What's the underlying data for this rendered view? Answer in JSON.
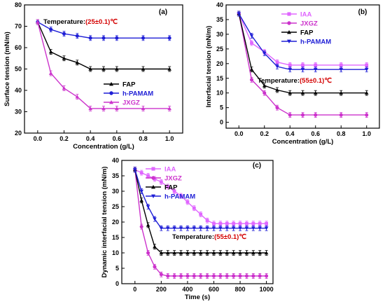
{
  "chart_data": [
    {
      "type": "line",
      "panel_label": "(a)",
      "annotation": {
        "prefix": "Temperature:",
        "value": "(25±0.1)℃"
      },
      "xlabel": "Concentration (g/L)",
      "ylabel": "Surface tension (mN/m)",
      "xlim": [
        -0.1,
        1.1
      ],
      "ylim": [
        20,
        80
      ],
      "xticks": [
        "0.0",
        "0.2",
        "0.4",
        "0.6",
        "0.8",
        "1.0"
      ],
      "yticks": [
        "20",
        "30",
        "40",
        "50",
        "60",
        "70",
        "80"
      ],
      "legend_position": "middle-right",
      "legend_order": [
        "FAP",
        "h-PAMAM",
        "JXGZ"
      ],
      "series": [
        {
          "name": "FAP",
          "color": "#000000",
          "marker": "triangle-up",
          "x": [
            0.0,
            0.1,
            0.2,
            0.3,
            0.4,
            0.5,
            0.6,
            0.8,
            1.0
          ],
          "y": [
            72,
            58,
            55,
            53,
            50,
            50,
            50,
            50,
            50
          ]
        },
        {
          "name": "h-PAMAM",
          "color": "#1f1fd6",
          "marker": "circle",
          "x": [
            0.0,
            0.1,
            0.2,
            0.3,
            0.4,
            0.5,
            0.6,
            0.8,
            1.0
          ],
          "y": [
            72,
            68.5,
            66.5,
            65.5,
            64.5,
            64.5,
            64.5,
            64.5,
            64.5
          ]
        },
        {
          "name": "JXGZ",
          "color": "#cc33cc",
          "marker": "triangle-up",
          "x": [
            0.0,
            0.1,
            0.2,
            0.3,
            0.4,
            0.5,
            0.6,
            0.8,
            1.0
          ],
          "y": [
            72,
            48,
            41,
            37,
            31.5,
            31.5,
            31.5,
            31.5,
            31.5
          ]
        }
      ]
    },
    {
      "type": "line",
      "panel_label": "(b)",
      "annotation": {
        "prefix": "Temperature:",
        "value": "(55±0.1)℃"
      },
      "xlabel": "Concentration (g/L)",
      "ylabel": "Interfacial tension (mN/m)",
      "xlim": [
        -0.1,
        1.1
      ],
      "ylim": [
        -2,
        40
      ],
      "xticks": [
        "0.0",
        "0.2",
        "0.4",
        "0.6",
        "0.8",
        "1.0"
      ],
      "yticks": [
        "0",
        "5",
        "10",
        "15",
        "20",
        "25",
        "30",
        "35",
        "40"
      ],
      "legend_position": "top-right",
      "legend_order": [
        "IAA",
        "JXGZ",
        "FAP",
        "h-PAMAM"
      ],
      "series": [
        {
          "name": "IAA",
          "color": "#e066ff",
          "marker": "square",
          "x": [
            0.0,
            0.1,
            0.2,
            0.3,
            0.4,
            0.5,
            0.6,
            0.8,
            1.0
          ],
          "y": [
            37,
            27,
            24,
            20.5,
            19.5,
            19.5,
            19.5,
            19.5,
            19.5
          ]
        },
        {
          "name": "JXGZ",
          "color": "#cc33cc",
          "marker": "circle",
          "x": [
            0.0,
            0.1,
            0.2,
            0.3,
            0.4,
            0.5,
            0.6,
            0.8,
            1.0
          ],
          "y": [
            37,
            14.5,
            10,
            5,
            2.5,
            2.5,
            2.5,
            2.5,
            2.5
          ]
        },
        {
          "name": "FAP",
          "color": "#000000",
          "marker": "triangle-up",
          "x": [
            0.0,
            0.1,
            0.2,
            0.3,
            0.4,
            0.5,
            0.6,
            0.8,
            1.0
          ],
          "y": [
            37,
            18,
            12.5,
            11,
            10,
            10,
            10,
            10,
            10
          ]
        },
        {
          "name": "h-PAMAM",
          "color": "#1f1fd6",
          "marker": "triangle-down",
          "x": [
            0.0,
            0.1,
            0.2,
            0.3,
            0.4,
            0.5,
            0.6,
            0.8,
            1.0
          ],
          "y": [
            37,
            29.5,
            23.5,
            19,
            18,
            18,
            18,
            18,
            18
          ]
        }
      ]
    },
    {
      "type": "line",
      "panel_label": "(c)",
      "annotation": {
        "prefix": "Temperature:",
        "value": "(55±0.1)℃"
      },
      "xlabel": "Time (s)",
      "ylabel": "Dynamic interfacial tension (mN/m)",
      "xlim": [
        -100,
        1050
      ],
      "ylim": [
        0,
        40
      ],
      "xticks": [
        "0",
        "200",
        "400",
        "600",
        "800",
        "1000"
      ],
      "yticks": [
        "0",
        "5",
        "10",
        "15",
        "20",
        "25",
        "30",
        "35",
        "40"
      ],
      "legend_position": "top-left",
      "legend_order": [
        "IAA",
        "JXGZ",
        "FAP",
        "h-PAMAM"
      ],
      "series": [
        {
          "name": "IAA",
          "color": "#e066ff",
          "marker": "square",
          "x": [
            0,
            50,
            100,
            150,
            200,
            250,
            300,
            350,
            400,
            450,
            500,
            550,
            600,
            650,
            700,
            750,
            800,
            850,
            900,
            950,
            1000
          ],
          "y": [
            37,
            36,
            35,
            34,
            33,
            31.5,
            30,
            28.5,
            26.5,
            24.5,
            22.5,
            20.5,
            19.5,
            19.5,
            19.5,
            19.5,
            19.5,
            19.5,
            19.5,
            19.5,
            19.5
          ]
        },
        {
          "name": "JXGZ",
          "color": "#cc33cc",
          "marker": "circle",
          "x": [
            0,
            50,
            100,
            150,
            200,
            250,
            300,
            350,
            400,
            450,
            500,
            550,
            600,
            650,
            700,
            750,
            800,
            850,
            900,
            950,
            1000
          ],
          "y": [
            37,
            18.5,
            10,
            5.5,
            3,
            2.5,
            2.5,
            2.5,
            2.5,
            2.5,
            2.5,
            2.5,
            2.5,
            2.5,
            2.5,
            2.5,
            2.5,
            2.5,
            2.5,
            2.5,
            2.5
          ]
        },
        {
          "name": "FAP",
          "color": "#000000",
          "marker": "triangle-up",
          "x": [
            0,
            50,
            100,
            150,
            200,
            250,
            300,
            350,
            400,
            450,
            500,
            550,
            600,
            650,
            700,
            750,
            800,
            850,
            900,
            950,
            1000
          ],
          "y": [
            37,
            27,
            19,
            12,
            10,
            10,
            10,
            10,
            10,
            10,
            10,
            10,
            10,
            10,
            10,
            10,
            10,
            10,
            10,
            10,
            10
          ]
        },
        {
          "name": "h-PAMAM",
          "color": "#1f1fd6",
          "marker": "triangle-down",
          "x": [
            0,
            50,
            100,
            150,
            200,
            250,
            300,
            350,
            400,
            450,
            500,
            550,
            600,
            650,
            700,
            750,
            800,
            850,
            900,
            950,
            1000
          ],
          "y": [
            37,
            30,
            25,
            21,
            18,
            18,
            18,
            18,
            18,
            18,
            18,
            18,
            18,
            18,
            18,
            18,
            18,
            18,
            18,
            18,
            18
          ]
        }
      ]
    }
  ]
}
